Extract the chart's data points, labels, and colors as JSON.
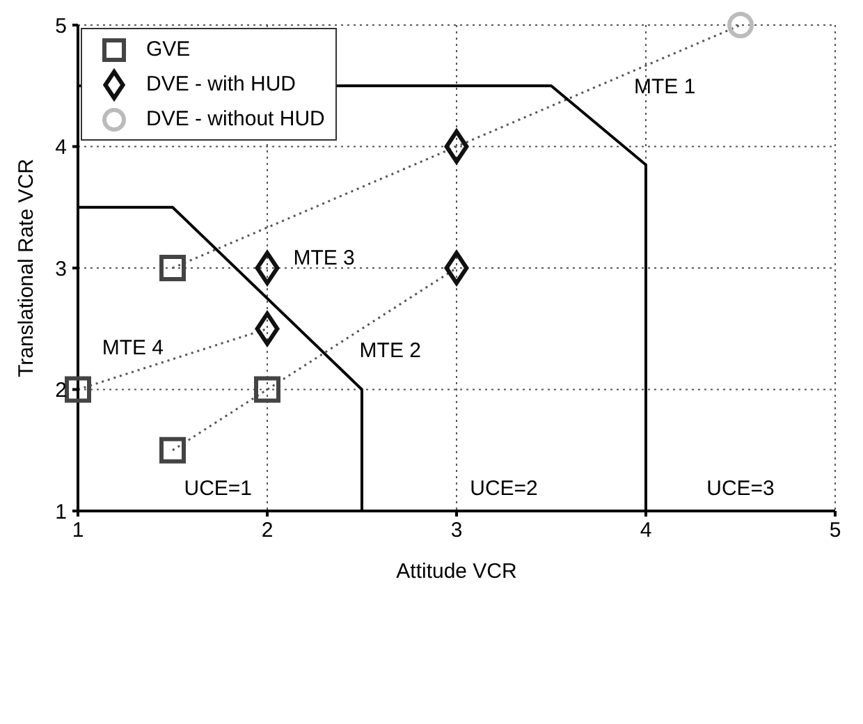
{
  "chart_data": {
    "type": "scatter",
    "xlabel": "Attitude VCR",
    "ylabel": "Translational Rate VCR",
    "xlim": [
      1,
      5
    ],
    "ylim": [
      1,
      5
    ],
    "xticks": [
      1,
      2,
      3,
      4,
      5
    ],
    "yticks": [
      1,
      2,
      3,
      4,
      5
    ],
    "grid": true,
    "legend": "top left",
    "series": [
      {
        "name": "GVE",
        "marker": "square",
        "color": "#444444",
        "x": [
          1,
          1.5,
          1.5,
          2
        ],
        "values": [
          2,
          3,
          1.5,
          2
        ]
      },
      {
        "name": "DVE - with HUD",
        "marker": "diamond",
        "color": "#111111",
        "x": [
          2,
          2,
          3,
          3
        ],
        "values": [
          3,
          2.5,
          4,
          3
        ]
      },
      {
        "name": "DVE - without HUD",
        "marker": "circle",
        "color": "#bbbbbb",
        "x": [
          4.5
        ],
        "values": [
          5
        ]
      },
      {
        "type": "line",
        "marker": "none",
        "line_style": "dotted",
        "color": "#555555",
        "x": [
          1.5,
          3,
          4.5
        ],
        "values": [
          3,
          4,
          5
        ]
      },
      {
        "type": "line",
        "marker": "none",
        "line_style": "dotted",
        "color": "#555555",
        "x": [
          1,
          2
        ],
        "values": [
          2,
          2.5
        ]
      },
      {
        "type": "line",
        "marker": "none",
        "line_style": "dotted",
        "color": "#555555",
        "x": [
          1.5,
          2,
          3
        ],
        "values": [
          1.5,
          2,
          3
        ]
      },
      {
        "type": "line",
        "marker": "none",
        "line_style": "solid",
        "color": "#000000",
        "x": [
          1,
          1.5,
          2.5,
          2.5
        ],
        "values": [
          3.5,
          3.5,
          2,
          1
        ]
      },
      {
        "type": "line",
        "marker": "none",
        "line_style": "solid",
        "color": "#000000",
        "x": [
          1,
          3.5,
          4,
          4
        ],
        "values": [
          4.5,
          4.5,
          3.85,
          1
        ]
      }
    ],
    "annotations": [
      "MTE 1",
      "MTE 2",
      "MTE 3",
      "MTE 4",
      "UCE=1",
      "UCE=2",
      "UCE=3"
    ]
  }
}
